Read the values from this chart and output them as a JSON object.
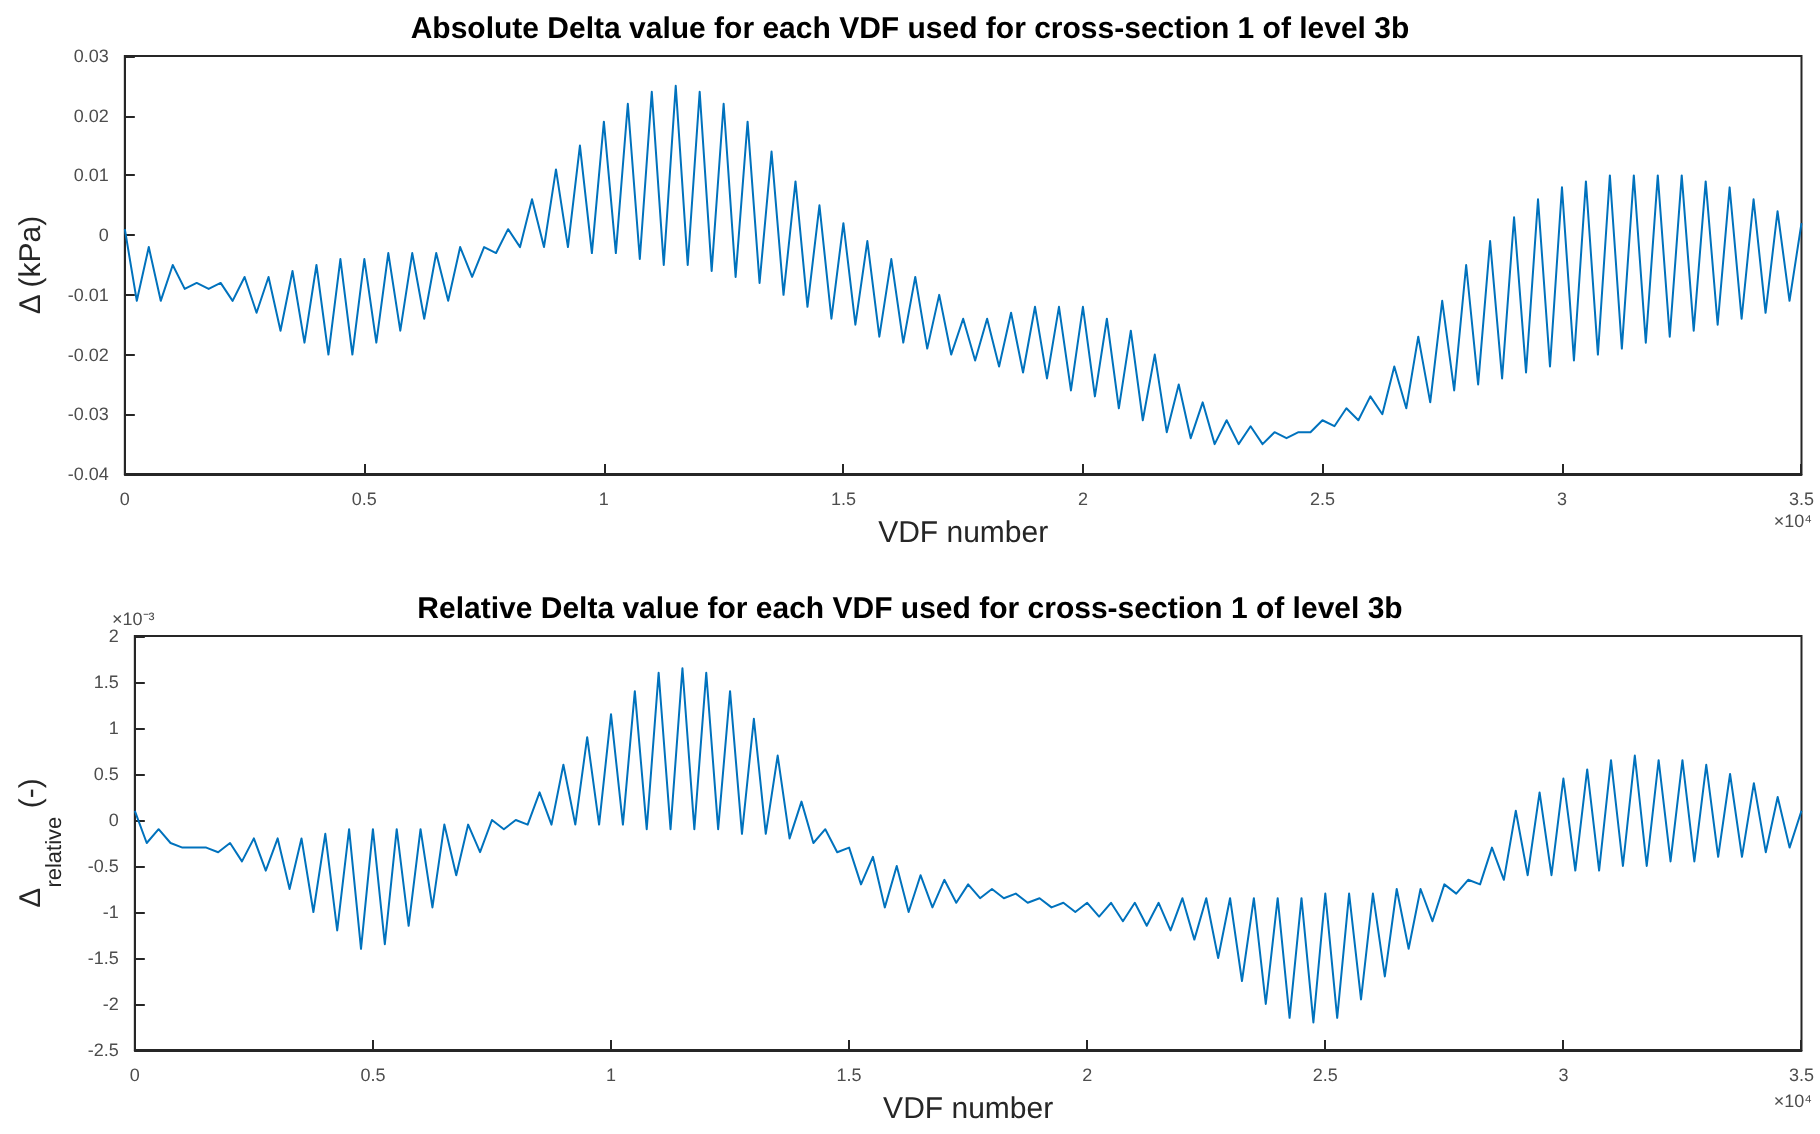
{
  "chart_data": [
    {
      "type": "line",
      "title": "Absolute Delta value for each VDF used for cross-section 1 of level 3b",
      "xlabel": "VDF number",
      "ylabel": "Δ (kPa)",
      "annotations": [
        "×10⁴"
      ],
      "x": [
        0,
        0.025,
        0.05,
        0.075,
        0.1,
        0.125,
        0.15,
        0.175,
        0.2,
        0.225,
        0.25,
        0.275,
        0.3,
        0.325,
        0.35,
        0.375,
        0.4,
        0.425,
        0.45,
        0.475,
        0.5,
        0.525,
        0.55,
        0.575,
        0.6,
        0.625,
        0.65,
        0.675,
        0.7,
        0.725,
        0.75,
        0.775,
        0.8,
        0.825,
        0.85,
        0.875,
        0.9,
        0.925,
        0.95,
        0.975,
        1,
        1.025,
        1.05,
        1.075,
        1.1,
        1.125,
        1.15,
        1.175,
        1.2,
        1.225,
        1.25,
        1.275,
        1.3,
        1.325,
        1.35,
        1.375,
        1.4,
        1.425,
        1.45,
        1.475,
        1.5,
        1.525,
        1.55,
        1.575,
        1.6,
        1.625,
        1.65,
        1.675,
        1.7,
        1.725,
        1.75,
        1.775,
        1.8,
        1.825,
        1.85,
        1.875,
        1.9,
        1.925,
        1.95,
        1.975,
        2,
        2.025,
        2.05,
        2.075,
        2.1,
        2.125,
        2.15,
        2.175,
        2.2,
        2.225,
        2.25,
        2.275,
        2.3,
        2.325,
        2.35,
        2.375,
        2.4,
        2.425,
        2.45,
        2.475,
        2.5,
        2.525,
        2.55,
        2.575,
        2.6,
        2.625,
        2.65,
        2.675,
        2.7,
        2.725,
        2.75,
        2.775,
        2.8,
        2.825,
        2.85,
        2.875,
        2.9,
        2.925,
        2.95,
        2.975,
        3,
        3.025,
        3.05,
        3.075,
        3.1,
        3.125,
        3.15,
        3.175,
        3.2,
        3.225,
        3.25,
        3.275,
        3.3,
        3.325,
        3.35,
        3.375,
        3.4,
        3.425,
        3.45,
        3.475,
        3.5
      ],
      "series": [
        {
          "color": "#0072bd",
          "values": [
            0.001,
            -0.011,
            -0.002,
            -0.011,
            -0.005,
            -0.009,
            -0.008,
            -0.009,
            -0.008,
            -0.011,
            -0.007,
            -0.013,
            -0.007,
            -0.016,
            -0.006,
            -0.018,
            -0.005,
            -0.02,
            -0.004,
            -0.02,
            -0.004,
            -0.018,
            -0.003,
            -0.016,
            -0.003,
            -0.014,
            -0.003,
            -0.011,
            -0.002,
            -0.007,
            -0.002,
            -0.003,
            0.001,
            -0.002,
            0.006,
            -0.002,
            0.011,
            -0.002,
            0.015,
            -0.003,
            0.019,
            -0.003,
            0.022,
            -0.004,
            0.024,
            -0.005,
            0.025,
            -0.005,
            0.024,
            -0.006,
            0.022,
            -0.007,
            0.019,
            -0.008,
            0.014,
            -0.01,
            0.009,
            -0.012,
            0.005,
            -0.014,
            0.002,
            -0.015,
            -0.001,
            -0.017,
            -0.004,
            -0.018,
            -0.007,
            -0.019,
            -0.01,
            -0.02,
            -0.014,
            -0.021,
            -0.014,
            -0.022,
            -0.013,
            -0.023,
            -0.012,
            -0.024,
            -0.012,
            -0.026,
            -0.012,
            -0.027,
            -0.014,
            -0.029,
            -0.016,
            -0.031,
            -0.02,
            -0.033,
            -0.025,
            -0.034,
            -0.028,
            -0.035,
            -0.031,
            -0.035,
            -0.032,
            -0.035,
            -0.033,
            -0.034,
            -0.033,
            -0.033,
            -0.031,
            -0.032,
            -0.029,
            -0.031,
            -0.027,
            -0.03,
            -0.022,
            -0.029,
            -0.017,
            -0.028,
            -0.011,
            -0.026,
            -0.005,
            -0.025,
            -0.001,
            -0.024,
            0.003,
            -0.023,
            0.006,
            -0.022,
            0.008,
            -0.021,
            0.009,
            -0.02,
            0.01,
            -0.019,
            0.01,
            -0.018,
            0.01,
            -0.017,
            0.01,
            -0.016,
            0.009,
            -0.015,
            0.008,
            -0.014,
            0.006,
            -0.013,
            0.004,
            -0.011,
            0.002
          ]
        }
      ],
      "xlim": [
        0,
        3.5
      ],
      "xticks": [
        0,
        0.5,
        1,
        1.5,
        2,
        2.5,
        3,
        3.5
      ],
      "ylim": [
        -0.04,
        0.03
      ],
      "yticks": [
        -0.04,
        -0.03,
        -0.02,
        -0.01,
        0,
        0.01,
        0.02,
        0.03
      ]
    },
    {
      "type": "line",
      "title": "Relative Delta value for each VDF used for cross-section 1 of level 3b",
      "xlabel": "VDF number",
      "ylabel": "Δ$_{relative}$ (-)",
      "annotations": [
        "×10⁴",
        "×10⁻³"
      ],
      "x": [
        0,
        0.025,
        0.05,
        0.075,
        0.1,
        0.125,
        0.15,
        0.175,
        0.2,
        0.225,
        0.25,
        0.275,
        0.3,
        0.325,
        0.35,
        0.375,
        0.4,
        0.425,
        0.45,
        0.475,
        0.5,
        0.525,
        0.55,
        0.575,
        0.6,
        0.625,
        0.65,
        0.675,
        0.7,
        0.725,
        0.75,
        0.775,
        0.8,
        0.825,
        0.85,
        0.875,
        0.9,
        0.925,
        0.95,
        0.975,
        1,
        1.025,
        1.05,
        1.075,
        1.1,
        1.125,
        1.15,
        1.175,
        1.2,
        1.225,
        1.25,
        1.275,
        1.3,
        1.325,
        1.35,
        1.375,
        1.4,
        1.425,
        1.45,
        1.475,
        1.5,
        1.525,
        1.55,
        1.575,
        1.6,
        1.625,
        1.65,
        1.675,
        1.7,
        1.725,
        1.75,
        1.775,
        1.8,
        1.825,
        1.85,
        1.875,
        1.9,
        1.925,
        1.95,
        1.975,
        2,
        2.025,
        2.05,
        2.075,
        2.1,
        2.125,
        2.15,
        2.175,
        2.2,
        2.225,
        2.25,
        2.275,
        2.3,
        2.325,
        2.35,
        2.375,
        2.4,
        2.425,
        2.45,
        2.475,
        2.5,
        2.525,
        2.55,
        2.575,
        2.6,
        2.625,
        2.65,
        2.675,
        2.7,
        2.725,
        2.75,
        2.775,
        2.8,
        2.825,
        2.85,
        2.875,
        2.9,
        2.925,
        2.95,
        2.975,
        3,
        3.025,
        3.05,
        3.075,
        3.1,
        3.125,
        3.15,
        3.175,
        3.2,
        3.225,
        3.25,
        3.275,
        3.3,
        3.325,
        3.35,
        3.375,
        3.4,
        3.425,
        3.45,
        3.475,
        3.5
      ],
      "series": [
        {
          "color": "#0072bd",
          "values": [
            0.1,
            -0.25,
            -0.1,
            -0.25,
            -0.3,
            -0.3,
            -0.3,
            -0.35,
            -0.25,
            -0.45,
            -0.2,
            -0.55,
            -0.2,
            -0.75,
            -0.2,
            -1.0,
            -0.15,
            -1.2,
            -0.1,
            -1.4,
            -0.1,
            -1.35,
            -0.1,
            -1.15,
            -0.1,
            -0.95,
            -0.05,
            -0.6,
            -0.05,
            -0.35,
            0,
            -0.1,
            0,
            -0.05,
            0.3,
            -0.05,
            0.6,
            -0.05,
            0.9,
            -0.05,
            1.15,
            -0.05,
            1.4,
            -0.1,
            1.6,
            -0.1,
            1.65,
            -0.1,
            1.6,
            -0.1,
            1.4,
            -0.15,
            1.1,
            -0.15,
            0.7,
            -0.2,
            0.2,
            -0.25,
            -0.1,
            -0.35,
            -0.3,
            -0.7,
            -0.4,
            -0.95,
            -0.5,
            -1.0,
            -0.6,
            -0.95,
            -0.65,
            -0.9,
            -0.7,
            -0.85,
            -0.75,
            -0.85,
            -0.8,
            -0.9,
            -0.85,
            -0.95,
            -0.9,
            -1.0,
            -0.9,
            -1.05,
            -0.9,
            -1.1,
            -0.9,
            -1.15,
            -0.9,
            -1.2,
            -0.85,
            -1.3,
            -0.85,
            -1.5,
            -0.85,
            -1.75,
            -0.85,
            -2.0,
            -0.85,
            -2.15,
            -0.85,
            -2.2,
            -0.8,
            -2.15,
            -0.8,
            -1.95,
            -0.8,
            -1.7,
            -0.75,
            -1.4,
            -0.75,
            -1.1,
            -0.7,
            -0.8,
            -0.65,
            -0.7,
            -0.3,
            -0.65,
            0.1,
            -0.6,
            0.3,
            -0.6,
            0.45,
            -0.55,
            0.55,
            -0.55,
            0.65,
            -0.5,
            0.7,
            -0.5,
            0.65,
            -0.45,
            0.65,
            -0.45,
            0.6,
            -0.4,
            0.5,
            -0.4,
            0.4,
            -0.35,
            0.25,
            -0.3,
            0.1
          ]
        }
      ],
      "xlim": [
        0,
        3.5
      ],
      "xticks": [
        0,
        0.5,
        1,
        1.5,
        2,
        2.5,
        3,
        3.5
      ],
      "ylim": [
        -2.5,
        2
      ],
      "yticks": [
        -2.5,
        -2,
        -1.5,
        -1,
        -0.5,
        0,
        0.5,
        1,
        1.5,
        2
      ]
    }
  ]
}
